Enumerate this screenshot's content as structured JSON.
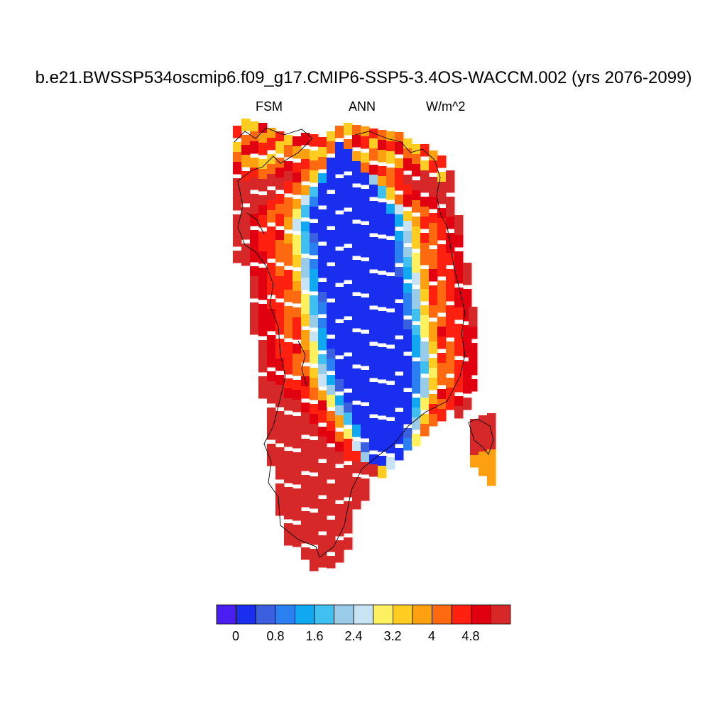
{
  "title": "b.e21.BWSSP534oscmip6.f09_g17.CMIP6-SSP5-3.4OS-WACCM.002 (yrs 2076-2099)",
  "subtitle": {
    "left": "FSM",
    "center": "ANN",
    "right": "W/m^2"
  },
  "colorbar": {
    "colors": [
      "#4a1ef0",
      "#1a2ef0",
      "#3a60e0",
      "#2a80f0",
      "#10a8f0",
      "#40c0f0",
      "#98cce8",
      "#c8e4f4",
      "#fff060",
      "#ffcc22",
      "#ffa010",
      "#ff6a10",
      "#ff2010",
      "#e00010",
      "#d62828"
    ],
    "tick_labels": [
      "0",
      "0.8",
      "1.6",
      "2.4",
      "3.2",
      "4",
      "4.8"
    ]
  }
}
